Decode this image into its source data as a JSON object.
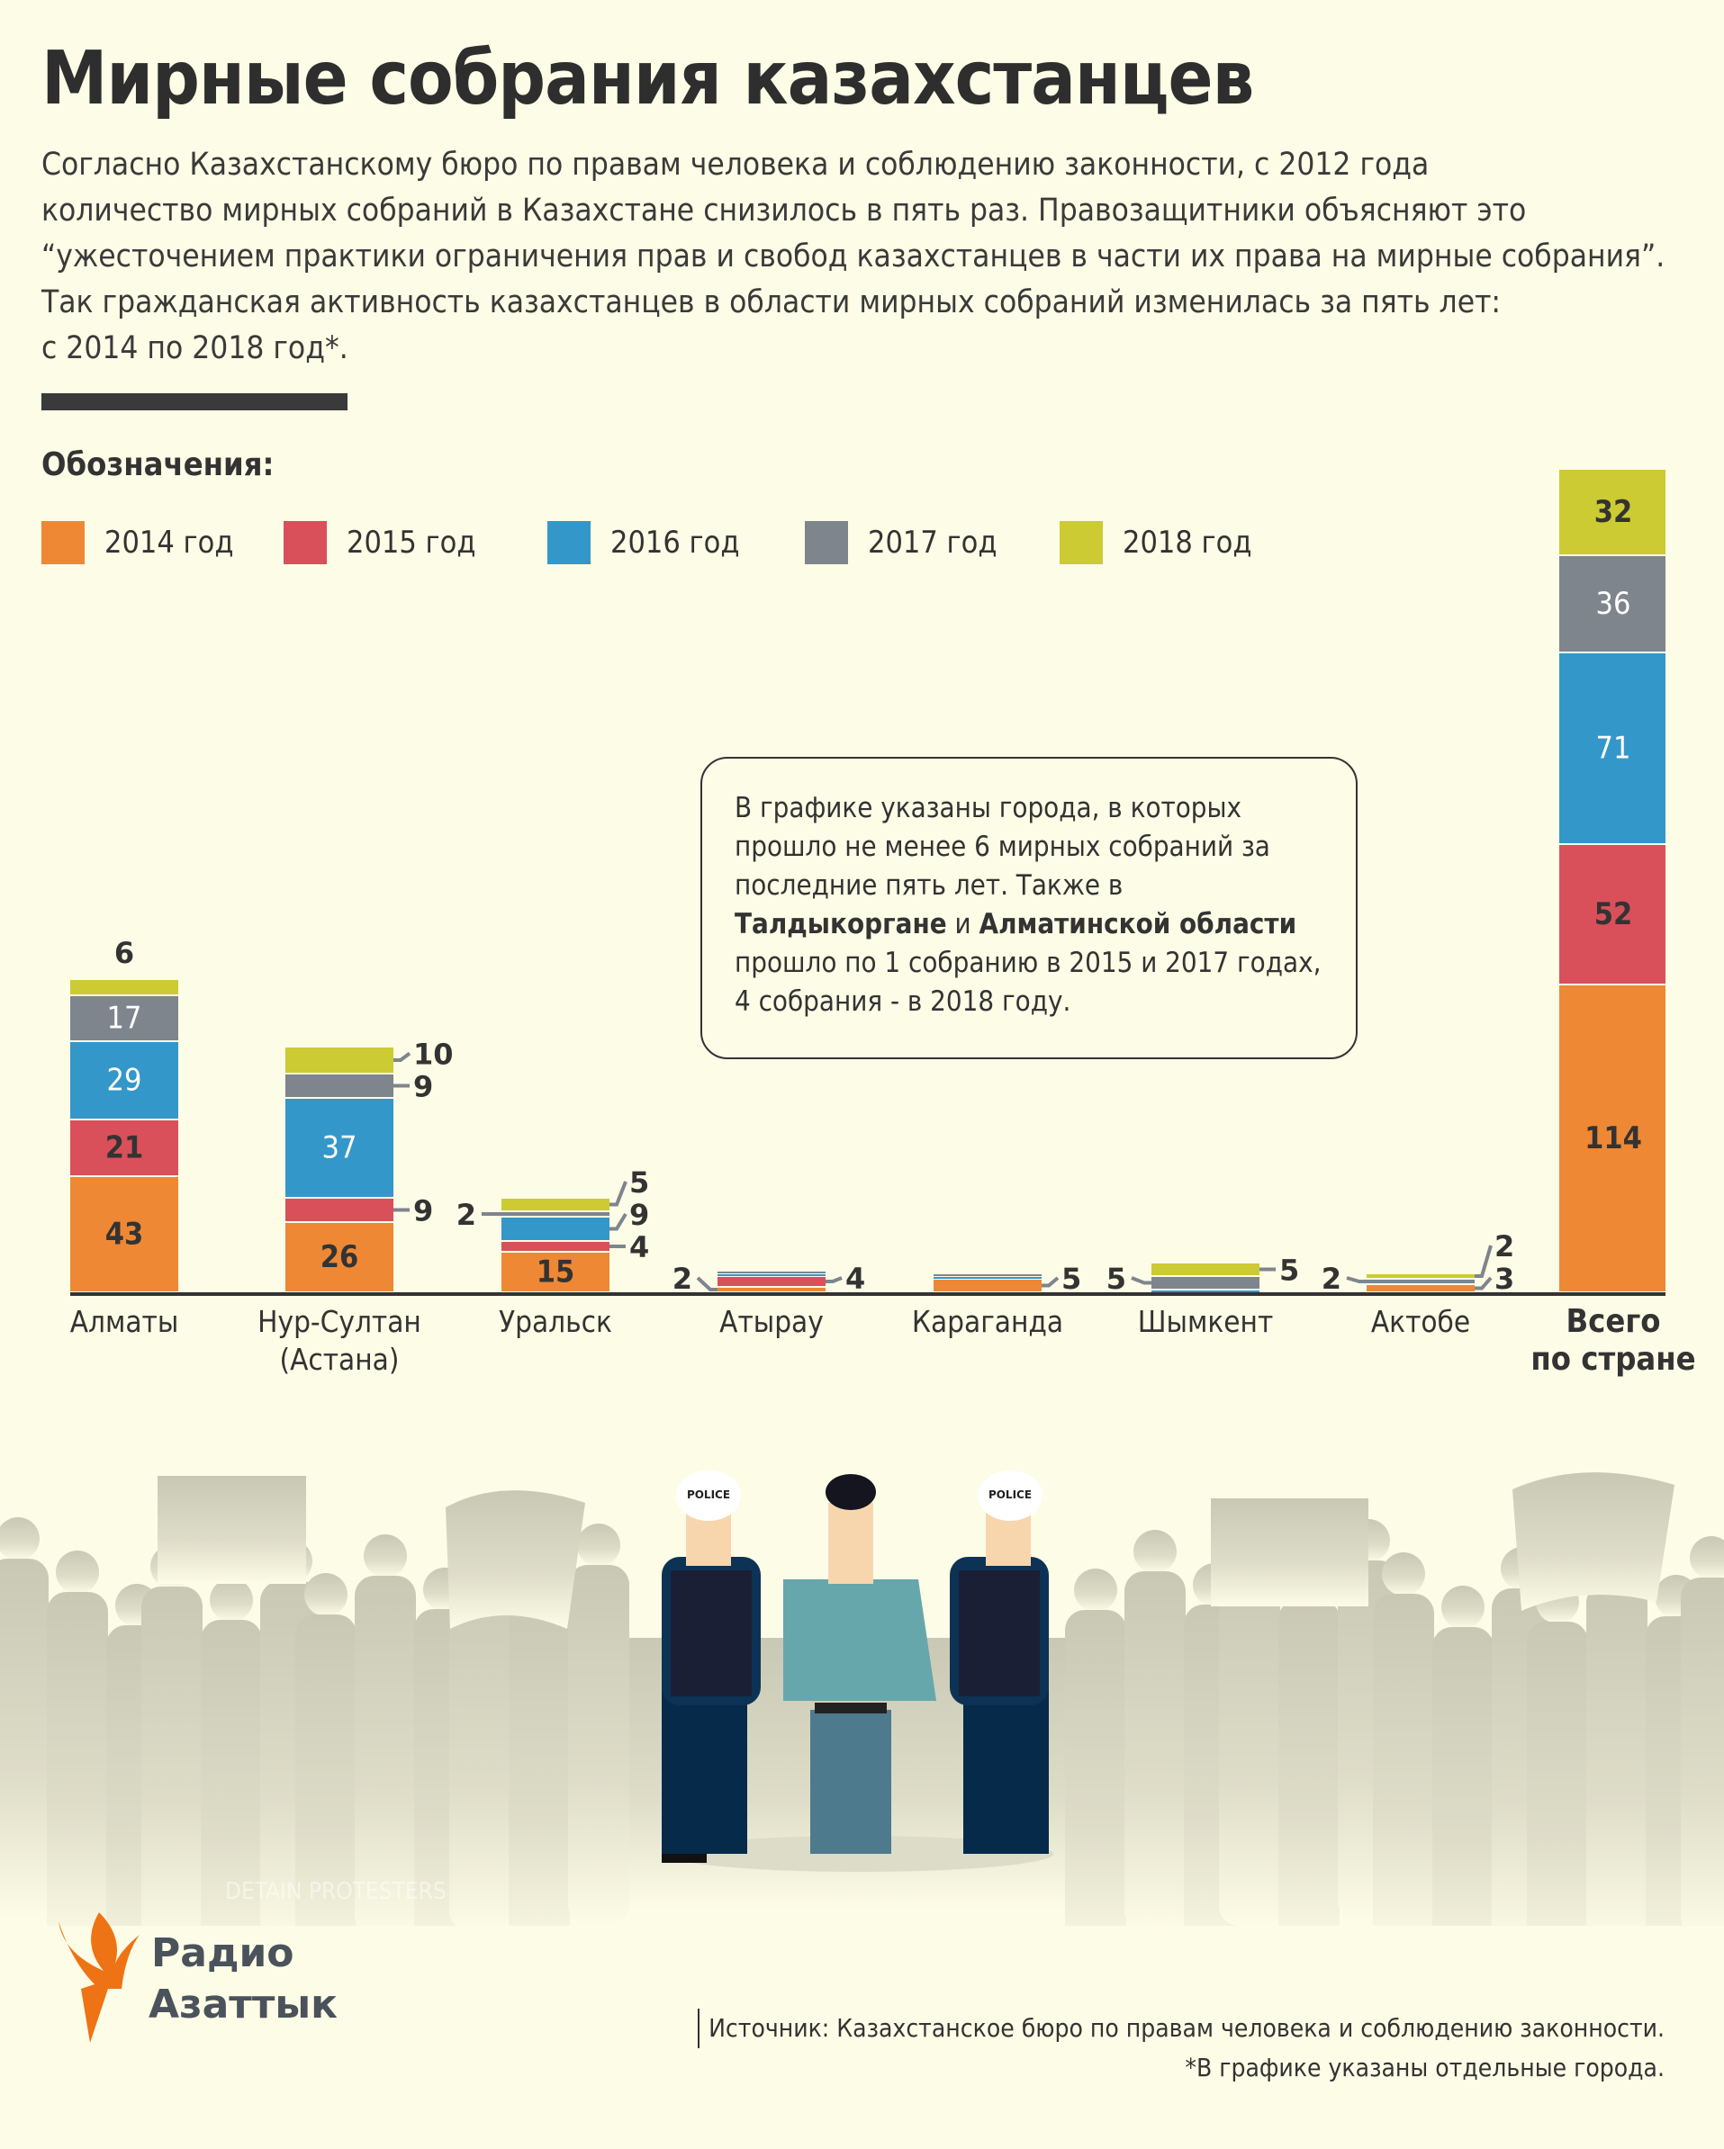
{
  "title": "Мирные собрания казахстанцев",
  "intro": [
    "Согласно Казахстанскому бюро по правам человека и соблюдению законности, с 2012 года",
    "количество мирных собраний в Казахстане снизилось в пять раз. Правозащитники объясняют это",
    "“ужесточением практики ограничения прав и свобод казахстанцев в части их права на мирные собрания”.",
    "Так гражданская активность казахстанцев в области мирных собраний изменилась за пять лет:",
    "с 2014 по 2018 год*."
  ],
  "legend_title": "Обозначения:",
  "colors": {
    "2014": "#ee8834",
    "2015": "#d9505a",
    "2016": "#3497c9",
    "2017": "#7e858d",
    "2018": "#cccb33",
    "text": "#333333",
    "background": "#fdfce6"
  },
  "callout": {
    "p1": "В графике указаны города, в которых прошло не менее 6 мирных собраний за последние пять лет. Также в ",
    "b1": "Талдыкоргане",
    "p2": " и ",
    "b2": "Алматинской области",
    "p3": " прошло по 1 собранию в 2015 и 2017 годах, 4 собрания - в 2018 году."
  },
  "chart_data": {
    "type": "bar",
    "stacked": true,
    "title": "",
    "xlabel": "",
    "ylabel": "",
    "legend": [
      "2014 год",
      "2015 год",
      "2016 год",
      "2017 год",
      "2018 год"
    ],
    "series_years": [
      "2014",
      "2015",
      "2016",
      "2017",
      "2018"
    ],
    "categories": [
      "Алматы",
      "Нур-Султан (Астана)",
      "Уральск",
      "Атырау",
      "Караганда",
      "Шымкент",
      "Актобе",
      "Всего по стране"
    ],
    "category_lines": [
      [
        "Алматы"
      ],
      [
        "Нур-Султан",
        "(Астана)"
      ],
      [
        "Уральск"
      ],
      [
        "Атырау"
      ],
      [
        "Караганда"
      ],
      [
        "Шымкент"
      ],
      [
        "Актобе"
      ],
      [
        "Всего",
        "по стране"
      ]
    ],
    "values": [
      {
        "2014": 43,
        "2015": 21,
        "2016": 29,
        "2017": 17,
        "2018": 6
      },
      {
        "2014": 26,
        "2015": 9,
        "2016": 37,
        "2017": 9,
        "2018": 10
      },
      {
        "2014": 15,
        "2015": 4,
        "2016": 9,
        "2017": 2,
        "2018": 5
      },
      {
        "2014": 2,
        "2015": 4,
        "2016": 1,
        "2017": 1,
        "2018": 0
      },
      {
        "2014": 5,
        "2015": 0,
        "2016": 1,
        "2017": 1,
        "2018": 0
      },
      {
        "2014": 0,
        "2015": 0,
        "2016": 1,
        "2017": 5,
        "2018": 5
      },
      {
        "2014": 3,
        "2015": 0,
        "2016": 0,
        "2017": 2,
        "2018": 2
      },
      {
        "2014": 114,
        "2015": 52,
        "2016": 71,
        "2017": 36,
        "2018": 32
      }
    ],
    "printed_labels": [
      [
        "2014",
        "2015",
        "2016",
        "2017",
        "2018"
      ],
      [
        "2014",
        "2015",
        "2016",
        "2017",
        "2018"
      ],
      [
        "2014",
        "2015",
        "2016",
        "2017",
        "2018"
      ],
      [
        "2014",
        "2015"
      ],
      [
        "2014"
      ],
      [
        "2017",
        "2018"
      ],
      [
        "2014",
        "2017",
        "2018"
      ],
      [
        "2014",
        "2015",
        "2016",
        "2017",
        "2018"
      ]
    ]
  },
  "illustration": {
    "helmet_text": "POLICE",
    "faint_caption": "DETAIN PROTESTERS"
  },
  "logo": {
    "line1": "Радио",
    "line2": "Азаттык"
  },
  "source": {
    "line1": "Источник: Казахстанское бюро по правам человека и соблюдению законности.",
    "line2": "*В графике указаны отдельные города."
  }
}
